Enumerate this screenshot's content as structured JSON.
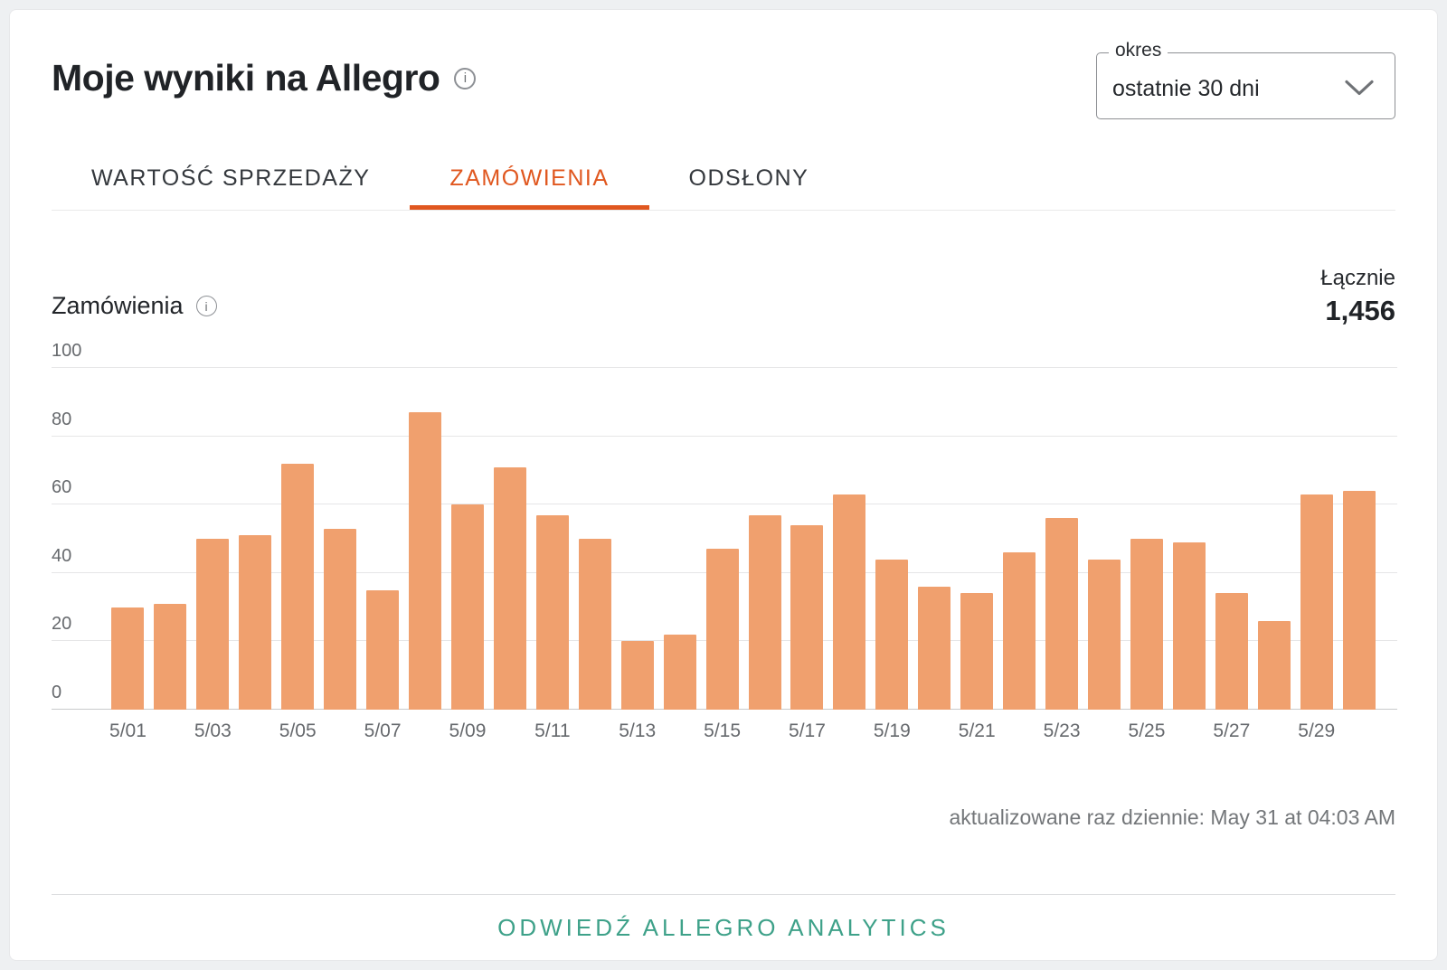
{
  "card": {
    "title": "Moje wyniki na Allegro",
    "period": {
      "label": "okres",
      "value": "ostatnie 30 dni"
    },
    "tabs": [
      {
        "label": "WARTOŚĆ SPRZEDAŻY",
        "active": false
      },
      {
        "label": "ZAMÓWIENIA",
        "active": true
      },
      {
        "label": "ODSŁONY",
        "active": false
      }
    ],
    "metric_label": "Zamówienia",
    "total_label": "Łącznie",
    "total_value": "1,456",
    "updated_text": "aktualizowane raz dziennie: May 31 at 04:03 AM",
    "link_label": "ODWIEDŹ ALLEGRO ANALYTICS",
    "info_icon_glyph": "i"
  },
  "colors": {
    "bar": "#F0A06E",
    "tab_active": "#E0571F",
    "link": "#3EA189",
    "gridline": "#E6E6E7",
    "axis_line": "#C9CACC"
  },
  "chart_data": {
    "type": "bar",
    "title": "Zamówienia",
    "x": [
      "5/01",
      "5/02",
      "5/03",
      "5/04",
      "5/05",
      "5/06",
      "5/07",
      "5/08",
      "5/09",
      "5/10",
      "5/11",
      "5/12",
      "5/13",
      "5/14",
      "5/15",
      "5/16",
      "5/17",
      "5/18",
      "5/19",
      "5/20",
      "5/21",
      "5/22",
      "5/23",
      "5/24",
      "5/25",
      "5/26",
      "5/27",
      "5/28",
      "5/29",
      "5/30"
    ],
    "values": [
      30,
      31,
      50,
      51,
      72,
      53,
      35,
      87,
      60,
      71,
      57,
      50,
      20,
      22,
      47,
      57,
      54,
      63,
      44,
      36,
      34,
      46,
      56,
      44,
      50,
      49,
      34,
      26,
      63,
      64
    ],
    "total": 1456,
    "xlabel": "",
    "ylabel": "",
    "ylim": [
      0,
      100
    ],
    "yticks": [
      0,
      20,
      40,
      60,
      80,
      100
    ],
    "x_tick_every": 2,
    "grid": true,
    "legend": "none"
  }
}
